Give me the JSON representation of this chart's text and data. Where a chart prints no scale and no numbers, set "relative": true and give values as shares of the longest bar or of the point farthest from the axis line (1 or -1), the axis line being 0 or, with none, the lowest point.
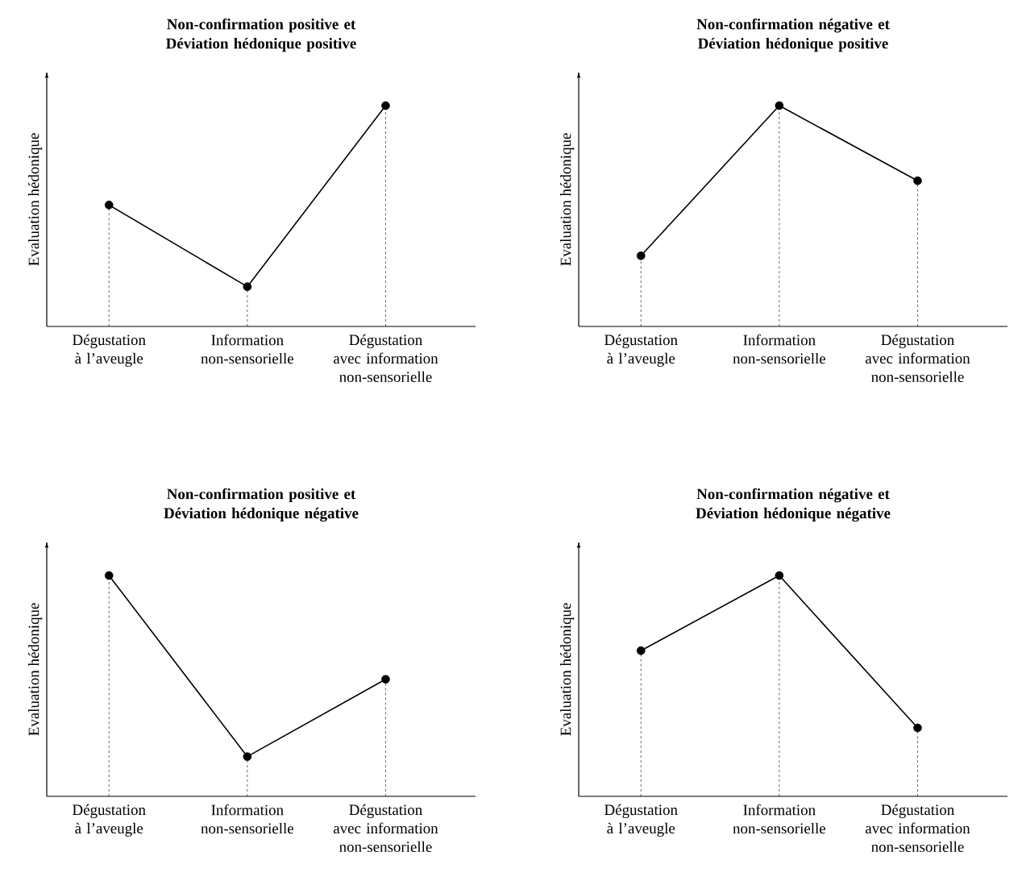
{
  "chart_data": [
    {
      "type": "line",
      "title": "Non-confirmation positive et Déviation hédonique positive",
      "ylabel": "Evaluation hédonique",
      "categories": [
        "Dégustation à l’aveugle",
        "Information non-sensorielle",
        "Dégustation avec information non-sensorielle"
      ],
      "relative": true,
      "series": [
        {
          "type": "lollipop",
          "color": "#000000",
          "line_style": "dashed",
          "marker": "circle",
          "values": [
            0.55,
            0.18,
            1
          ]
        },
        {
          "color": "#000000",
          "marker": "none",
          "values": [
            0.55,
            0.18,
            1
          ]
        }
      ]
    },
    {
      "type": "line",
      "title": "Non-confirmation négative et Déviation hédonique positive",
      "ylabel": "Evaluation hédonique",
      "categories": [
        "Dégustation à l’aveugle",
        "Information non-sensorielle",
        "Dégustation avec information non-sensorielle"
      ],
      "relative": true,
      "series": [
        {
          "type": "lollipop",
          "color": "#000000",
          "line_style": "dashed",
          "marker": "circle",
          "values": [
            0.32,
            1,
            0.66
          ]
        },
        {
          "color": "#000000",
          "marker": "none",
          "values": [
            0.32,
            1,
            0.66
          ]
        }
      ]
    },
    {
      "type": "line",
      "title": "Non-confirmation positive et Déviation hédonique négative",
      "ylabel": "Evaluation hédonique",
      "categories": [
        "Dégustation à l’aveugle",
        "Information non-sensorielle",
        "Dégustation avec information non-sensorielle"
      ],
      "relative": true,
      "series": [
        {
          "type": "lollipop",
          "color": "#000000",
          "line_style": "dashed",
          "marker": "circle",
          "values": [
            1,
            0.18,
            0.53
          ]
        },
        {
          "color": "#000000",
          "marker": "none",
          "values": [
            1,
            0.18,
            0.53
          ]
        }
      ]
    },
    {
      "type": "line",
      "title": "Non-confirmation négative et Déviation hédonique négative",
      "ylabel": "Evaluation hédonique",
      "categories": [
        "Dégustation à l’aveugle",
        "Information non-sensorielle",
        "Dégustation avec information non-sensorielle"
      ],
      "relative": true,
      "series": [
        {
          "type": "lollipop",
          "color": "#000000",
          "line_style": "dashed",
          "marker": "circle",
          "values": [
            0.66,
            1,
            0.31
          ]
        },
        {
          "color": "#000000",
          "marker": "none",
          "values": [
            0.66,
            1,
            0.31
          ]
        }
      ]
    }
  ]
}
